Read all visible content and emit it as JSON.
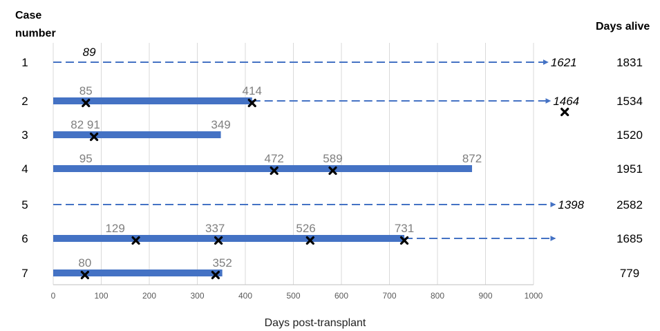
{
  "chart_data": {
    "type": "swimmer",
    "headers": {
      "left_line1": "Case",
      "left_line2": "number",
      "right": "Days alive"
    },
    "xlabel": "Days post-transplant",
    "xlim": [
      0,
      1000
    ],
    "xticks": [
      0,
      100,
      200,
      300,
      400,
      500,
      600,
      700,
      800,
      900,
      1000
    ],
    "grid": true,
    "colors": {
      "bar": "#4472C4",
      "dashed": "#4472C4",
      "marker": "#000000",
      "value_label": "#7f7f7f"
    },
    "cases": [
      {
        "case": "1",
        "days_alive": "1831",
        "bars": [],
        "dashed": [
          {
            "start": 0,
            "end": 1030
          }
        ],
        "markers": [],
        "labels": [
          {
            "text": "89",
            "x": 75,
            "italic": true
          }
        ],
        "arrow_label": {
          "text": "1621",
          "italic": true
        }
      },
      {
        "case": "2",
        "days_alive": "1534",
        "bars": [
          {
            "start": 0,
            "end": 414
          }
        ],
        "dashed": [
          {
            "start": 414,
            "end": 1035
          }
        ],
        "markers": [
          68,
          414,
          1065
        ],
        "labels": [
          {
            "text": "85",
            "x": 68
          },
          {
            "text": "414",
            "x": 414
          }
        ],
        "arrow_label": {
          "text": "1464",
          "italic": true
        }
      },
      {
        "case": "3",
        "days_alive": "1520",
        "bars": [
          {
            "start": 0,
            "end": 349
          }
        ],
        "dashed": [],
        "markers": [
          85
        ],
        "labels": [
          {
            "text": "82 91",
            "x": 67
          },
          {
            "text": "349",
            "x": 349
          }
        ],
        "arrow_label": null
      },
      {
        "case": "4",
        "days_alive": "1951",
        "bars": [
          {
            "start": 0,
            "end": 872
          }
        ],
        "dashed": [],
        "markers": [
          460,
          582
        ],
        "labels": [
          {
            "text": "95",
            "x": 68
          },
          {
            "text": "472",
            "x": 460
          },
          {
            "text": "589",
            "x": 582
          },
          {
            "text": "872",
            "x": 872
          }
        ],
        "arrow_label": null
      },
      {
        "case": "5",
        "days_alive": "2582",
        "bars": [],
        "dashed": [
          {
            "start": 0,
            "end": 1045
          }
        ],
        "markers": [],
        "labels": [],
        "arrow_label": {
          "text": "1398",
          "italic": true
        }
      },
      {
        "case": "6",
        "days_alive": "1685",
        "bars": [
          {
            "start": 0,
            "end": 731
          }
        ],
        "dashed": [
          {
            "start": 731,
            "end": 1045
          }
        ],
        "markers": [
          172,
          344,
          535,
          731
        ],
        "labels": [
          {
            "text": "129",
            "x": 129
          },
          {
            "text": "337",
            "x": 337
          },
          {
            "text": "526",
            "x": 526
          },
          {
            "text": "731",
            "x": 731
          }
        ],
        "arrow_label": null
      },
      {
        "case": "7",
        "days_alive": "779",
        "bars": [
          {
            "start": 0,
            "end": 352
          }
        ],
        "dashed": [],
        "markers": [
          66,
          338
        ],
        "labels": [
          {
            "text": "80",
            "x": 66
          },
          {
            "text": "352",
            "x": 352
          }
        ],
        "arrow_label": null
      }
    ]
  }
}
